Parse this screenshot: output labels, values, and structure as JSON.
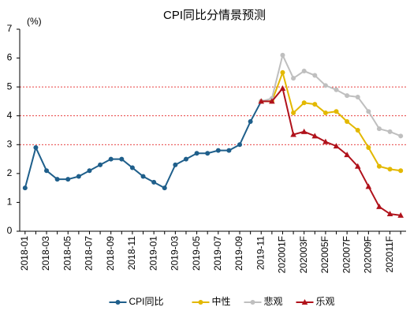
{
  "chart_data": {
    "type": "line",
    "title": "CPI同比分情景预测",
    "y_label": "(%)",
    "categories": [
      "2018-01",
      null,
      "2018-03",
      null,
      "2018-05",
      null,
      "2018-07",
      null,
      "2018-09",
      null,
      "2018-11",
      null,
      "2019-01",
      null,
      "2019-03",
      null,
      "2019-05",
      null,
      "2019-07",
      null,
      "2019-09",
      null,
      "2019-11",
      null,
      "202001F",
      null,
      "202003F",
      null,
      "202005F",
      null,
      "202007F",
      null,
      "202009F",
      null,
      "202011F",
      null
    ],
    "series": [
      {
        "name": "CPI同比",
        "color": "#1f5f8b",
        "marker": "circle",
        "values": [
          1.5,
          2.9,
          2.1,
          1.8,
          1.8,
          1.9,
          2.1,
          2.3,
          2.5,
          2.5,
          2.2,
          1.9,
          1.7,
          1.5,
          2.3,
          2.5,
          2.7,
          2.7,
          2.8,
          2.8,
          3.0,
          3.8,
          4.5,
          null,
          null,
          null,
          null,
          null,
          null,
          null,
          null,
          null,
          null,
          null,
          null,
          null
        ]
      },
      {
        "name": "中性",
        "color": "#e3b800",
        "marker": "circle",
        "values": [
          null,
          null,
          null,
          null,
          null,
          null,
          null,
          null,
          null,
          null,
          null,
          null,
          null,
          null,
          null,
          null,
          null,
          null,
          null,
          null,
          null,
          null,
          4.5,
          4.5,
          5.5,
          4.1,
          4.45,
          4.4,
          4.1,
          4.15,
          3.8,
          3.5,
          2.9,
          2.25,
          2.15,
          2.1
        ]
      },
      {
        "name": "悲观",
        "color": "#bfbfbf",
        "marker": "circle",
        "values": [
          null,
          null,
          null,
          null,
          null,
          null,
          null,
          null,
          null,
          null,
          null,
          null,
          null,
          null,
          null,
          null,
          null,
          null,
          null,
          null,
          null,
          null,
          4.5,
          4.6,
          6.1,
          5.3,
          5.55,
          5.4,
          5.05,
          4.9,
          4.7,
          4.65,
          4.15,
          3.55,
          3.45,
          3.3
        ]
      },
      {
        "name": "乐观",
        "color": "#b0121b",
        "marker": "triangle",
        "values": [
          null,
          null,
          null,
          null,
          null,
          null,
          null,
          null,
          null,
          null,
          null,
          null,
          null,
          null,
          null,
          null,
          null,
          null,
          null,
          null,
          null,
          null,
          4.5,
          4.5,
          4.95,
          3.35,
          3.45,
          3.3,
          3.1,
          2.95,
          2.65,
          2.25,
          1.55,
          0.85,
          0.6,
          0.55
        ]
      }
    ],
    "ylim": [
      0,
      7
    ],
    "yticks": [
      0,
      1,
      2,
      3,
      4,
      5,
      6,
      7
    ],
    "grid_lines": [
      3,
      4,
      5
    ],
    "grid_color": "#e00000",
    "legend": "bottom"
  }
}
